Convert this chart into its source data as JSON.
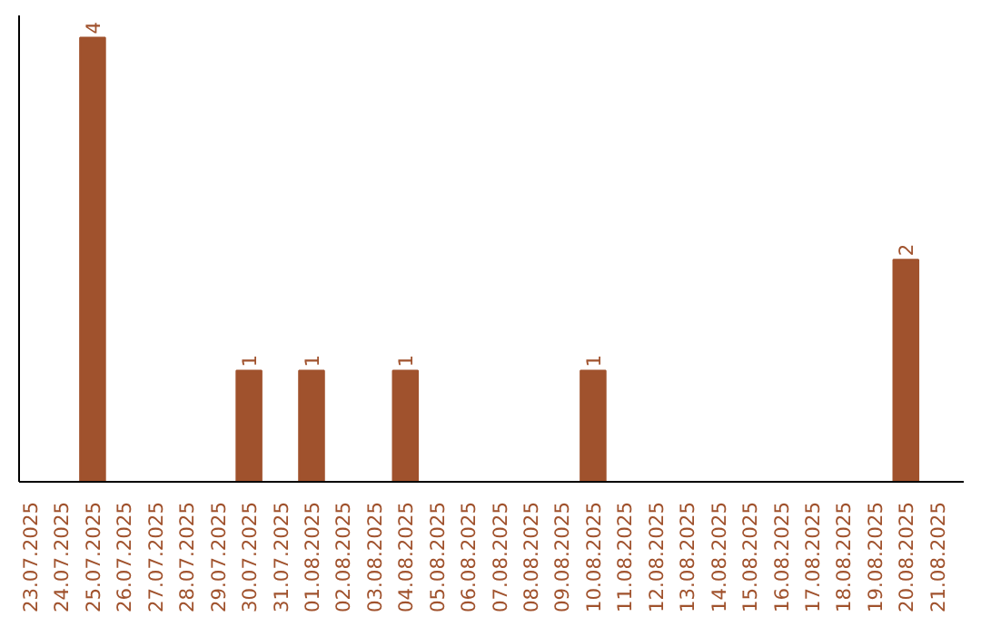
{
  "chart_data": {
    "type": "bar",
    "categories": [
      "23.07.2025",
      "24.07.2025",
      "25.07.2025",
      "26.07.2025",
      "27.07.2025",
      "28.07.2025",
      "29.07.2025",
      "30.07.2025",
      "31.07.2025",
      "01.08.2025",
      "02.08.2025",
      "03.08.2025",
      "04.08.2025",
      "05.08.2025",
      "06.08.2025",
      "07.08.2025",
      "08.08.2025",
      "09.08.2025",
      "10.08.2025",
      "11.08.2025",
      "12.08.2025",
      "13.08.2025",
      "14.08.2025",
      "15.08.2025",
      "16.08.2025",
      "17.08.2025",
      "18.08.2025",
      "19.08.2025",
      "20.08.2025",
      "21.08.2025"
    ],
    "values": [
      0,
      0,
      4,
      0,
      0,
      0,
      0,
      1,
      0,
      1,
      0,
      0,
      1,
      0,
      0,
      0,
      0,
      0,
      1,
      0,
      0,
      0,
      0,
      0,
      0,
      0,
      0,
      0,
      2,
      0
    ],
    "value_labels": [
      null,
      null,
      "4",
      null,
      null,
      null,
      null,
      "1",
      null,
      "1",
      null,
      null,
      "1",
      null,
      null,
      null,
      null,
      null,
      "1",
      null,
      null,
      null,
      null,
      null,
      null,
      null,
      null,
      null,
      "2",
      null
    ],
    "color": "#a0522d",
    "ylim": [
      0,
      4.2
    ],
    "tick_labels": "x",
    "grid": false
  }
}
